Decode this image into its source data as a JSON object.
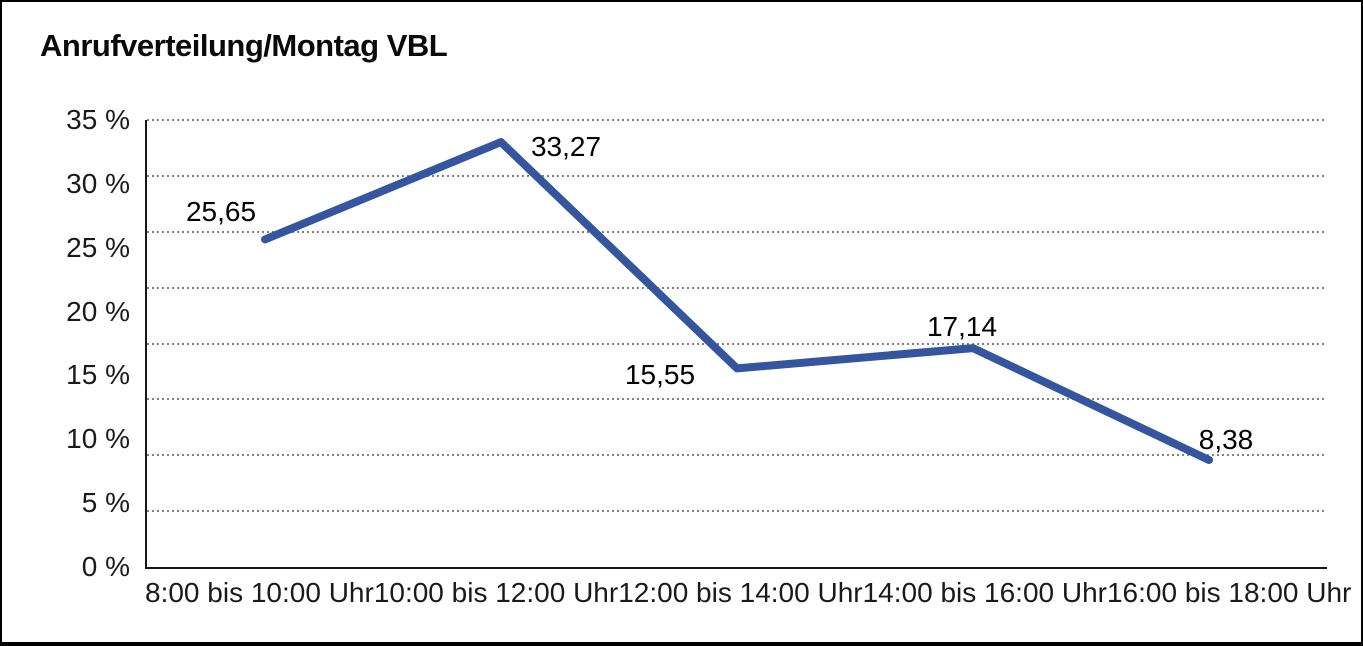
{
  "title": "Anrufverteilung/Montag VBL",
  "chart_data": {
    "type": "line",
    "title": "Anrufverteilung/Montag VBL",
    "categories": [
      "8:00 bis 10:00 Uhr",
      "10:00 bis 12:00 Uhr",
      "12:00 bis 14:00 Uhr",
      "14:00 bis 16:00 Uhr",
      "16:00 bis 18:00 Uhr"
    ],
    "values": [
      25.65,
      33.27,
      15.55,
      17.14,
      8.38
    ],
    "data_labels": [
      "25,65",
      "33,27",
      "15,55",
      "17,14",
      "8,38"
    ],
    "xlabel": "",
    "ylabel": "",
    "ylim": [
      0,
      35
    ],
    "ytick_labels": [
      "35 %",
      "30 %",
      "25 %",
      "20 %",
      "15 %",
      "10 %",
      "5 %",
      "0 %"
    ],
    "grid": "horizontal-dotted",
    "grid_intervals": 8,
    "legend": "none",
    "colors": {
      "line": "#35569E",
      "grid": "#828282",
      "axis": "#161616",
      "text": "#1a1a1a",
      "background": "#ffffff",
      "frame_border": "#000000"
    }
  }
}
